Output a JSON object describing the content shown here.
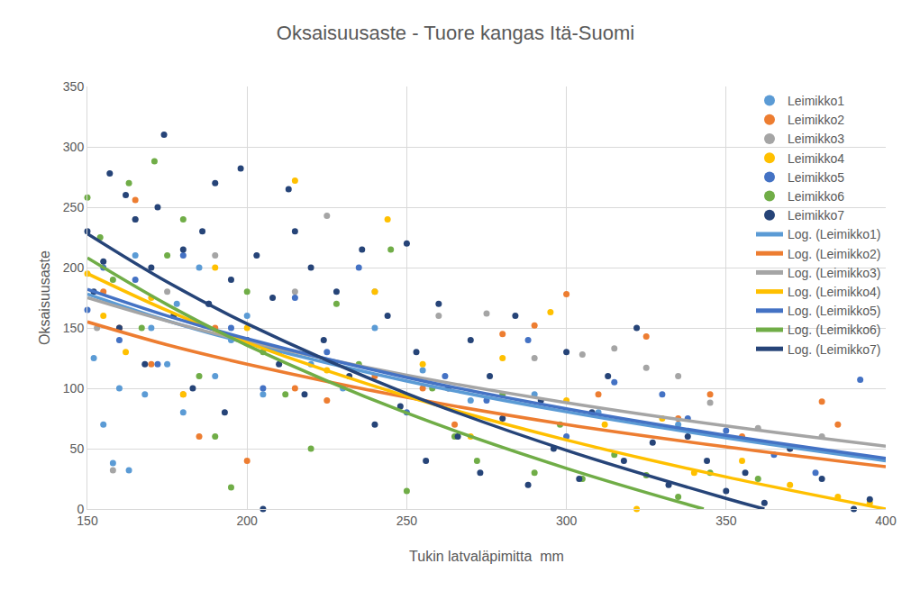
{
  "chart_data": {
    "type": "scatter",
    "title": "Oksaisuusaste - Tuore kangas Itä-Suomi",
    "x_label": "Tukin latvaläpimitta  mm",
    "y_label": "Oksaisuusaste",
    "xlim": [
      150,
      400
    ],
    "xticks": [
      150,
      200,
      250,
      300,
      350,
      400
    ],
    "ylim": [
      0,
      350
    ],
    "yticks": [
      0,
      50,
      100,
      150,
      200,
      250,
      300,
      350
    ],
    "grid": true,
    "legend": "top right",
    "series": [
      {
        "name": "Leimikko1",
        "type": "scatter",
        "marker": "circle",
        "color": "#5B9BD5",
        "x": [
          152,
          155,
          158,
          160,
          163,
          165,
          168,
          170,
          175,
          178,
          180,
          185,
          190,
          195,
          200,
          205,
          210,
          220,
          230,
          240,
          255,
          270,
          290,
          310,
          335
        ],
        "values": [
          125,
          70,
          38,
          100,
          32,
          210,
          95,
          150,
          120,
          170,
          80,
          200,
          110,
          140,
          160,
          95,
          130,
          120,
          100,
          150,
          115,
          90,
          95,
          80,
          70
        ]
      },
      {
        "name": "Leimikko2",
        "type": "scatter",
        "marker": "circle",
        "color": "#ED7D31",
        "x": [
          155,
          160,
          165,
          170,
          180,
          185,
          190,
          200,
          210,
          215,
          225,
          240,
          255,
          265,
          280,
          290,
          300,
          310,
          325,
          335,
          345,
          355,
          370,
          380,
          385
        ],
        "values": [
          180,
          150,
          256,
          120,
          95,
          60,
          150,
          40,
          130,
          100,
          90,
          110,
          100,
          70,
          145,
          152,
          178,
          95,
          143,
          75,
          95,
          60,
          50,
          89,
          70
        ]
      },
      {
        "name": "Leimikko3",
        "type": "scatter",
        "marker": "circle",
        "color": "#A5A5A5",
        "x": [
          153,
          158,
          165,
          175,
          190,
          200,
          215,
          225,
          240,
          260,
          275,
          290,
          305,
          315,
          325,
          335,
          345,
          360,
          380
        ],
        "values": [
          150,
          32,
          240,
          180,
          210,
          140,
          180,
          243,
          180,
          160,
          162,
          125,
          128,
          133,
          117,
          110,
          88,
          67,
          60
        ]
      },
      {
        "name": "Leimikko4",
        "type": "scatter",
        "marker": "circle",
        "color": "#FFC000",
        "x": [
          150,
          155,
          162,
          170,
          180,
          190,
          200,
          215,
          225,
          240,
          244,
          255,
          270,
          280,
          295,
          300,
          312,
          322,
          330,
          340,
          355,
          370,
          385,
          395
        ],
        "values": [
          195,
          160,
          130,
          175,
          95,
          200,
          150,
          272,
          115,
          180,
          240,
          120,
          60,
          125,
          163,
          90,
          70,
          0,
          75,
          30,
          40,
          20,
          10,
          5
        ]
      },
      {
        "name": "Leimikko5",
        "type": "scatter",
        "marker": "circle",
        "color": "#4472C4",
        "x": [
          150,
          155,
          160,
          165,
          172,
          180,
          188,
          195,
          205,
          215,
          225,
          235,
          250,
          262,
          275,
          288,
          300,
          315,
          330,
          338,
          350,
          365,
          378,
          392
        ],
        "values": [
          165,
          200,
          140,
          190,
          120,
          210,
          170,
          150,
          100,
          175,
          130,
          200,
          80,
          110,
          90,
          140,
          60,
          105,
          95,
          75,
          65,
          45,
          30,
          107
        ]
      },
      {
        "name": "Leimikko6",
        "type": "scatter",
        "marker": "circle",
        "color": "#70AD47",
        "x": [
          150,
          154,
          158,
          163,
          167,
          171,
          175,
          180,
          185,
          190,
          195,
          200,
          205,
          212,
          220,
          228,
          235,
          245,
          250,
          258,
          265,
          272,
          280,
          290,
          298,
          305,
          315,
          325,
          335,
          345,
          360
        ],
        "values": [
          258,
          225,
          190,
          270,
          150,
          288,
          210,
          240,
          110,
          60,
          18,
          180,
          130,
          95,
          50,
          170,
          120,
          215,
          15,
          100,
          60,
          40,
          95,
          30,
          70,
          25,
          45,
          28,
          10,
          30,
          25
        ]
      },
      {
        "name": "Leimikko7",
        "type": "scatter",
        "marker": "circle",
        "color": "#264478",
        "x": [
          150,
          152,
          155,
          157,
          160,
          162,
          165,
          168,
          170,
          172,
          174,
          177,
          180,
          183,
          186,
          188,
          190,
          193,
          195,
          198,
          200,
          203,
          205,
          208,
          210,
          213,
          215,
          218,
          220,
          224,
          228,
          232,
          236,
          240,
          244,
          248,
          250,
          253,
          256,
          260,
          263,
          266,
          270,
          273,
          276,
          280,
          284,
          288,
          292,
          296,
          300,
          304,
          308,
          313,
          318,
          322,
          327,
          332,
          338,
          344,
          350,
          356,
          362,
          370,
          380,
          390,
          395
        ],
        "values": [
          230,
          180,
          205,
          278,
          150,
          260,
          240,
          120,
          200,
          250,
          310,
          160,
          215,
          100,
          230,
          170,
          270,
          80,
          190,
          282,
          140,
          210,
          0,
          175,
          120,
          265,
          230,
          95,
          200,
          140,
          180,
          110,
          215,
          70,
          160,
          85,
          220,
          130,
          40,
          170,
          100,
          60,
          140,
          30,
          110,
          75,
          160,
          20,
          90,
          50,
          130,
          25,
          80,
          110,
          40,
          150,
          55,
          20,
          60,
          40,
          15,
          30,
          5,
          50,
          25,
          0,
          8
        ]
      },
      {
        "name": "Log. (Leimikko1)",
        "type": "line",
        "line_style": "solid",
        "color": "#5B9BD5",
        "x": [
          150,
          175,
          200,
          250,
          300,
          350,
          400
        ],
        "values": [
          178,
          156,
          137.5,
          106,
          80.5,
          59,
          40
        ]
      },
      {
        "name": "Log. (Leimikko2)",
        "type": "line",
        "line_style": "solid",
        "color": "#ED7D31",
        "x": [
          150,
          175,
          200,
          250,
          300,
          350,
          400
        ],
        "values": [
          155,
          136,
          120,
          92.5,
          70,
          51.5,
          35
        ]
      },
      {
        "name": "Log. (Leimikko3)",
        "type": "line",
        "line_style": "solid",
        "color": "#A5A5A5",
        "x": [
          150,
          175,
          200,
          250,
          300,
          350,
          400
        ],
        "values": [
          175,
          155.7,
          138.9,
          110.9,
          88.1,
          68.8,
          52
        ]
      },
      {
        "name": "Log. (Leimikko4)",
        "type": "line",
        "line_style": "solid",
        "color": "#FFC000",
        "x": [
          150,
          175,
          200,
          250,
          300,
          350,
          400
        ],
        "values": [
          195,
          164.4,
          137.7,
          93.4,
          57.2,
          26.6,
          0
        ]
      },
      {
        "name": "Log. (Leimikko5)",
        "type": "line",
        "line_style": "solid",
        "color": "#4472C4",
        "x": [
          150,
          175,
          200,
          250,
          300,
          350,
          400
        ],
        "values": [
          182,
          160,
          141,
          109,
          83,
          61,
          42
        ]
      },
      {
        "name": "Log. (Leimikko6)",
        "type": "line",
        "line_style": "solid",
        "color": "#70AD47",
        "x": [
          150,
          175,
          200,
          250,
          300,
          343
        ],
        "values": [
          208,
          169.3,
          135.6,
          79.5,
          33.7,
          0
        ]
      },
      {
        "name": "Log. (Leimikko7)",
        "type": "line",
        "line_style": "solid",
        "color": "#264478",
        "x": [
          150,
          175,
          200,
          250,
          300,
          350,
          362
        ],
        "values": [
          228,
          188,
          153.5,
          95.7,
          48.6,
          8.8,
          0
        ]
      }
    ]
  }
}
